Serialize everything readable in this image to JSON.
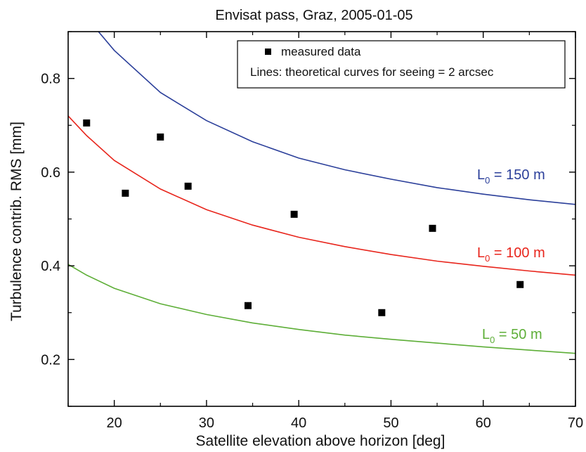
{
  "chart_data": {
    "type": "scatter",
    "title": "Envisat pass, Graz, 2005-01-05",
    "xlabel": "Satellite elevation above horizon [deg]",
    "ylabel": "Turbulence contrib. RMS [mm]",
    "xlim": [
      15,
      70
    ],
    "ylim": [
      0.1,
      0.9
    ],
    "xticks": [
      20,
      30,
      40,
      50,
      60,
      70
    ],
    "yticks": [
      0.2,
      0.4,
      0.6,
      0.8
    ],
    "xtick_labels": [
      "20",
      "30",
      "40",
      "50",
      "60",
      "70"
    ],
    "ytick_labels": [
      "0.2",
      "0.4",
      "0.6",
      "0.8"
    ],
    "grid": false,
    "legend": {
      "position": "top-right",
      "entries": [
        "measured data"
      ],
      "note": "Lines: theoretical curves for seeing = 2 arcsec"
    },
    "points": {
      "name": "measured data",
      "color": "#000000",
      "x": [
        17.0,
        21.2,
        25.0,
        28.0,
        34.5,
        39.5,
        49.0,
        54.5,
        64.0
      ],
      "y": [
        0.705,
        0.555,
        0.675,
        0.57,
        0.315,
        0.51,
        0.3,
        0.48,
        0.36
      ]
    },
    "curves": [
      {
        "label_main": "L",
        "label_sub": "0",
        "label_rest": " = 150 m",
        "color": "#2b3f9a",
        "x": [
          15,
          17,
          20,
          25,
          30,
          35,
          40,
          45,
          50,
          55,
          60,
          65,
          70
        ],
        "y": [
          0.99,
          0.93,
          0.86,
          0.77,
          0.71,
          0.665,
          0.63,
          0.605,
          0.585,
          0.567,
          0.553,
          0.541,
          0.531
        ]
      },
      {
        "label_main": "L",
        "label_sub": "0",
        "label_rest": " = 100 m",
        "color": "#e8251c",
        "x": [
          15,
          17,
          20,
          25,
          30,
          35,
          40,
          45,
          50,
          55,
          60,
          65,
          70
        ],
        "y": [
          0.72,
          0.678,
          0.625,
          0.564,
          0.52,
          0.487,
          0.461,
          0.441,
          0.424,
          0.41,
          0.399,
          0.389,
          0.38
        ]
      },
      {
        "label_main": "L",
        "label_sub": "0",
        "label_rest": " = 50 m",
        "color": "#5dae37",
        "x": [
          15,
          17,
          20,
          25,
          30,
          35,
          40,
          45,
          50,
          55,
          60,
          65,
          70
        ],
        "y": [
          0.403,
          0.38,
          0.352,
          0.319,
          0.296,
          0.278,
          0.264,
          0.252,
          0.243,
          0.235,
          0.227,
          0.22,
          0.213
        ]
      }
    ]
  }
}
